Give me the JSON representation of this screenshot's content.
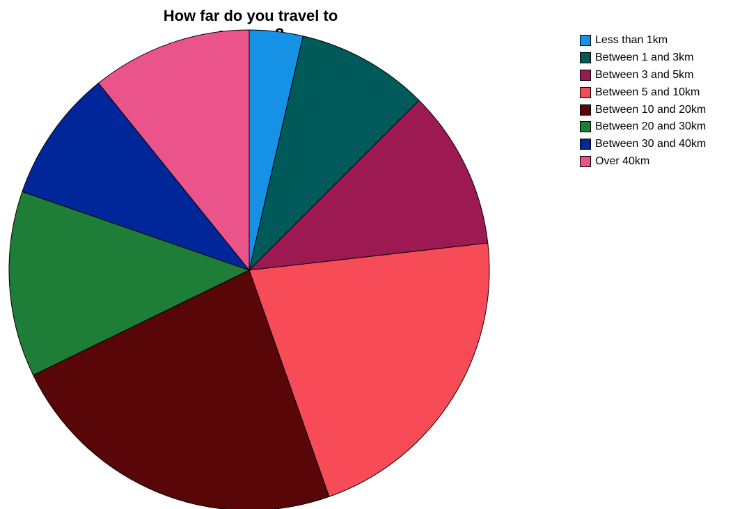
{
  "chart_data": {
    "type": "pie",
    "title": "How far do you travel to campus?",
    "categories": [
      "Less than 1km",
      "Between 1 and 3km",
      "Between 3 and 5km",
      "Between 5 and 10km",
      "Between 10 and 20km",
      "Between 20 and 30km",
      "Between 30 and 40km",
      "Over 40km"
    ],
    "values": [
      3.6,
      8.9,
      10.7,
      21.4,
      23.2,
      12.5,
      8.9,
      10.8
    ],
    "unit": "percent (estimated from slice angles)",
    "colors": [
      "#1591e6",
      "#005a5a",
      "#9c1952",
      "#f74c57",
      "#580608",
      "#1e7d37",
      "#00279a",
      "#eb548a"
    ],
    "start_angle": "12 o'clock",
    "direction": "clockwise",
    "legend_position": "top-right"
  }
}
